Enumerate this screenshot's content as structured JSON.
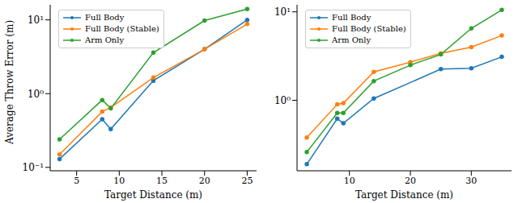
{
  "chart_data": [
    {
      "type": "line",
      "x_label": "Target Distance (m)",
      "y_label": "Average Throw Error (m)",
      "x": [
        3,
        8,
        9,
        14,
        20,
        25
      ],
      "series": [
        {
          "name": "Full Body",
          "color": "#1f77b4",
          "marker": "o",
          "values": [
            0.13,
            0.45,
            0.33,
            1.5,
            4.0,
            10
          ]
        },
        {
          "name": "Full Body (Stable)",
          "color": "#ff7f0e",
          "marker": "o",
          "values": [
            0.15,
            0.57,
            0.65,
            1.65,
            4.0,
            8.8
          ]
        },
        {
          "name": "Arm Only",
          "color": "#2ca02c",
          "marker": "o",
          "values": [
            0.24,
            0.82,
            0.63,
            3.6,
            9.8,
            14
          ]
        }
      ],
      "xlim": [
        1.9,
        26.1
      ],
      "xticks": [
        5,
        10,
        15,
        20,
        25
      ],
      "ylim": [
        0.09,
        16
      ],
      "yticks": [
        {
          "value": 0.1,
          "label": "10⁻¹"
        },
        {
          "value": 1,
          "label": "10⁰"
        },
        {
          "value": 10,
          "label": "10¹"
        }
      ],
      "log": "y",
      "legend": "upper left"
    },
    {
      "type": "line",
      "x_label": "Target Distance (m)",
      "x": [
        3,
        8,
        9,
        14,
        20,
        25,
        30,
        35
      ],
      "series": [
        {
          "name": "Full Body",
          "color": "#1f77b4",
          "marker": "o",
          "values": [
            0.19,
            0.62,
            0.55,
            1.05,
            null,
            2.25,
            2.3,
            3.1
          ]
        },
        {
          "name": "Full Body (Stable)",
          "color": "#ff7f0e",
          "marker": "o",
          "values": [
            0.38,
            0.9,
            0.93,
            2.1,
            2.7,
            3.4,
            4.0,
            5.4
          ]
        },
        {
          "name": "Arm Only",
          "color": "#2ca02c",
          "marker": "o",
          "values": [
            0.26,
            0.72,
            0.72,
            1.65,
            2.5,
            3.3,
            6.5,
            10.5
          ]
        }
      ],
      "xlim": [
        1.4,
        36.6
      ],
      "xticks": [
        10,
        20,
        30
      ],
      "ylim": [
        0.16,
        12
      ],
      "yticks": [
        {
          "value": 1,
          "label": "10⁰"
        },
        {
          "value": 10,
          "label": "10¹"
        }
      ],
      "log": "y",
      "legend": "upper left"
    }
  ]
}
